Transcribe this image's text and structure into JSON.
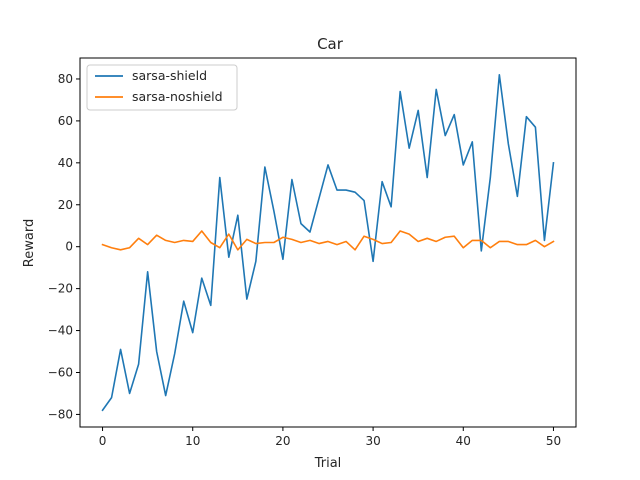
{
  "chart_data": {
    "type": "line",
    "title": "Car",
    "xlabel": "Trial",
    "ylabel": "Reward",
    "xlim": [
      -2.5,
      52.5
    ],
    "ylim": [
      -86,
      90
    ],
    "xticks": [
      0,
      10,
      20,
      30,
      40,
      50
    ],
    "yticks": [
      -80,
      -60,
      -40,
      -20,
      0,
      20,
      40,
      60,
      80
    ],
    "grid": false,
    "legend_position": "top-left",
    "x": [
      0,
      1,
      2,
      3,
      4,
      5,
      6,
      7,
      8,
      9,
      10,
      11,
      12,
      13,
      14,
      15,
      16,
      17,
      18,
      19,
      20,
      21,
      22,
      23,
      24,
      25,
      26,
      27,
      28,
      29,
      30,
      31,
      32,
      33,
      34,
      35,
      36,
      37,
      38,
      39,
      40,
      41,
      42,
      43,
      44,
      45,
      46,
      47,
      48,
      49,
      50
    ],
    "series": [
      {
        "name": "sarsa-shield",
        "color": "#1f77b4",
        "values": [
          -78,
          -72,
          -49,
          -70,
          -56,
          -12,
          -50,
          -71,
          -51,
          -26,
          -41,
          -15,
          -28,
          33,
          -5,
          15,
          -25,
          -7,
          38,
          17,
          -6,
          32,
          11,
          7,
          23,
          39,
          27,
          27,
          26,
          22,
          -7,
          31,
          19,
          74,
          47,
          65,
          33,
          75,
          53,
          63,
          39,
          50,
          -2,
          33,
          82,
          49,
          24,
          62,
          57,
          3,
          40
        ]
      },
      {
        "name": "sarsa-noshield",
        "color": "#ff7f0e",
        "values": [
          1,
          -0.5,
          -1.5,
          -0.5,
          4,
          1,
          5.5,
          3,
          2,
          3,
          2.5,
          7.5,
          2,
          -0.5,
          6,
          -1.5,
          3.5,
          1.5,
          2,
          2,
          4.5,
          3.5,
          2,
          3,
          1.5,
          2.5,
          1,
          2.5,
          -1.5,
          5,
          3.5,
          1.5,
          2,
          7.5,
          6,
          2.5,
          4,
          2.5,
          4.5,
          5,
          -0.5,
          3,
          3,
          -0.5,
          2.5,
          2.5,
          1,
          1,
          3,
          0,
          2.5
        ]
      }
    ]
  }
}
